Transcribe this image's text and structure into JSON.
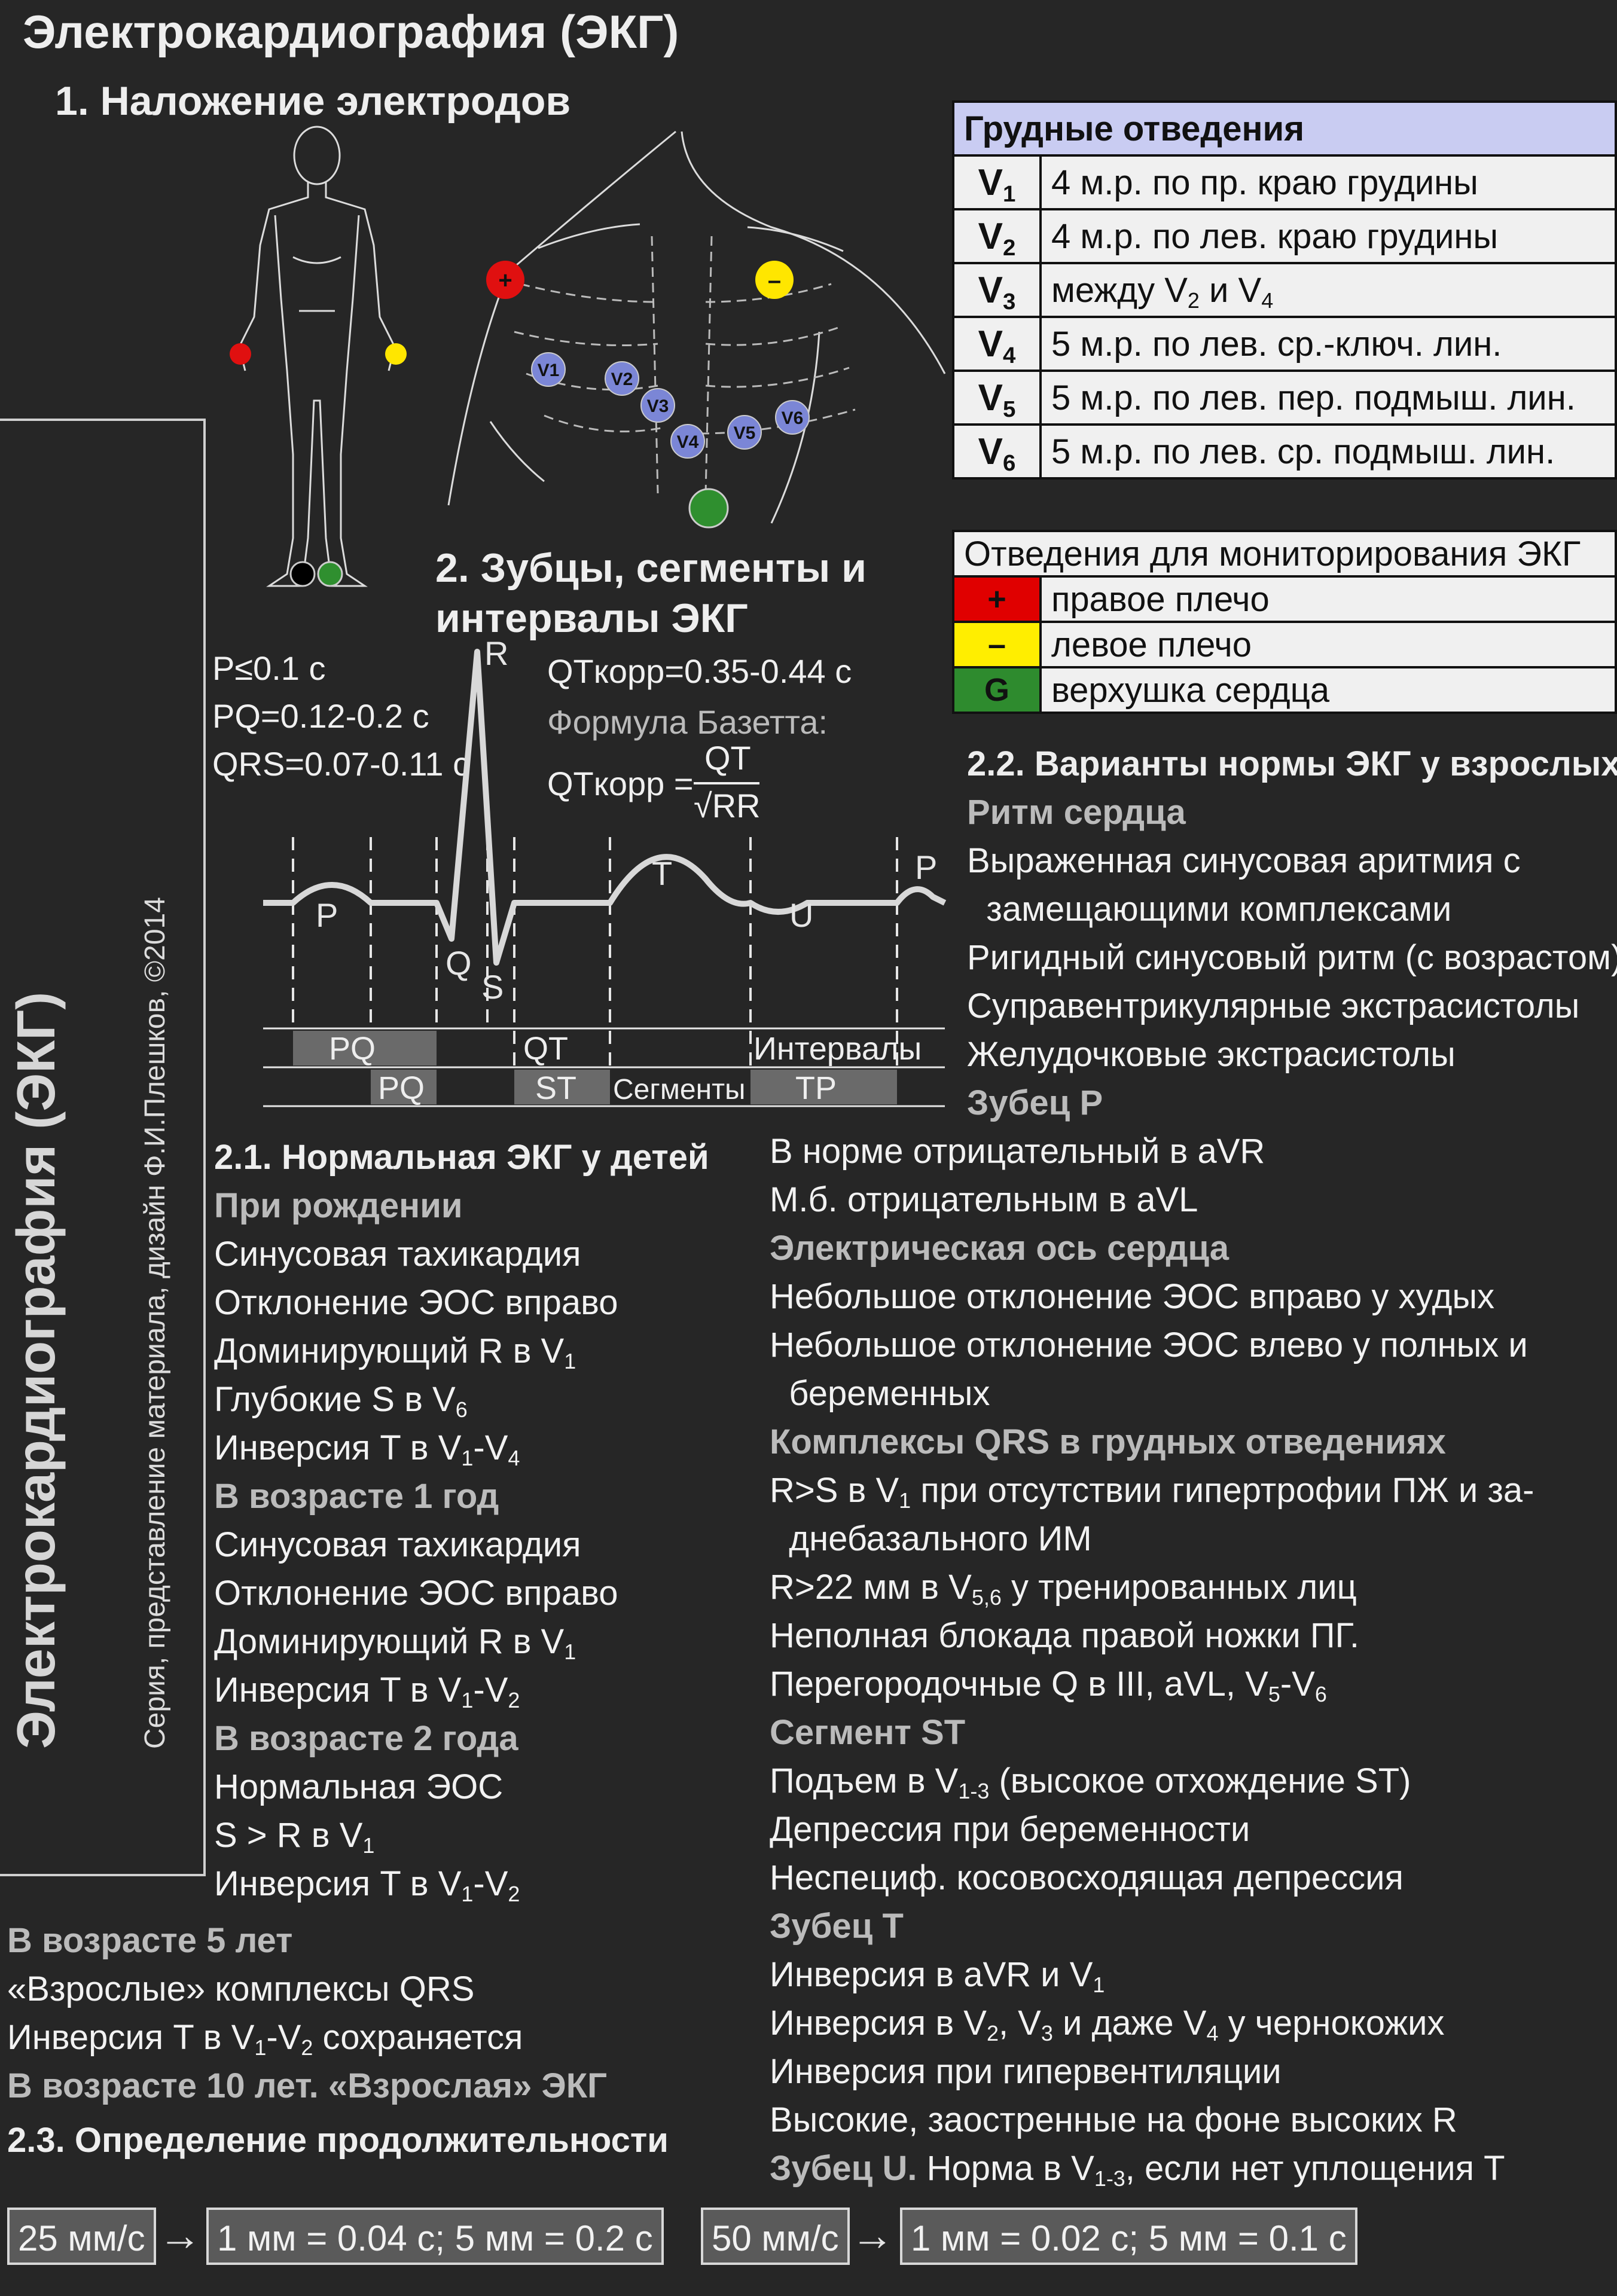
{
  "title": "Электрокардиография (ЭКГ)",
  "section1": {
    "title": "1. Наложение электродов"
  },
  "chest_leads": {
    "header": "Грудные отведения",
    "rows": [
      {
        "lead_base": "V",
        "lead_sub": "1",
        "pre": "4 м.р. по пр. краю грудины",
        "mid": "",
        "mid_sub": "",
        "post": "",
        "post_sub": ""
      },
      {
        "lead_base": "V",
        "lead_sub": "2",
        "pre": "4 м.р. по лев. краю грудины",
        "mid": "",
        "mid_sub": "",
        "post": "",
        "post_sub": ""
      },
      {
        "lead_base": "V",
        "lead_sub": "3",
        "pre": "между V",
        "mid": " и V",
        "mid_sub": "2",
        "post": "",
        "post_sub": "4"
      },
      {
        "lead_base": "V",
        "lead_sub": "4",
        "pre": "5 м.р. по лев. ср.-ключ. лин.",
        "mid": "",
        "mid_sub": "",
        "post": "",
        "post_sub": ""
      },
      {
        "lead_base": "V",
        "lead_sub": "5",
        "pre": "5 м.р. по лев. пер. подмыш. лин.",
        "mid": "",
        "mid_sub": "",
        "post": "",
        "post_sub": ""
      },
      {
        "lead_base": "V",
        "lead_sub": "6",
        "pre": "5 м.р. по лев. ср. подмыш. лин.",
        "mid": "",
        "mid_sub": "",
        "post": "",
        "post_sub": ""
      }
    ]
  },
  "monitoring": {
    "header": "Отведения для мониторирования ЭКГ",
    "rows": [
      {
        "symbol": "+",
        "text": "правое плечо",
        "color": "#e00000",
        "fg": "#111111"
      },
      {
        "symbol": "–",
        "text": "левое плечо",
        "color": "#ffee00",
        "fg": "#111111"
      },
      {
        "symbol": "G",
        "text": "верхушка сердца",
        "color": "#2e8b2e",
        "fg": "#111111"
      }
    ]
  },
  "electrodes": {
    "plus": "+",
    "minus": "–",
    "chest": [
      "V1",
      "V2",
      "V3",
      "V4",
      "V5",
      "V6"
    ],
    "colors": {
      "red": "#e01010",
      "yellow": "#ffe600",
      "green": "#2f8f2f",
      "black": "#000000",
      "lead": "#7b86d6"
    }
  },
  "section2": {
    "title_line1": "2. Зубцы, сегменты и",
    "title_line2": "интервалы ЭКГ",
    "params": {
      "p": "P≤0.1 с",
      "pq": "PQ=0.12-0.2 с",
      "qrs": "QRS=0.07-0.11 с"
    },
    "qtc": "QTкорр=0.35-0.44 с",
    "bazett_label": "Формула Базетта:",
    "formula_left": "QTкорр =",
    "formula_num": "QT",
    "formula_den": "√RR",
    "waves": {
      "p": "P",
      "q": "Q",
      "r": "R",
      "s": "S",
      "t": "T",
      "u": "U",
      "p2": "P"
    },
    "intervals": {
      "pq": "PQ",
      "qt": "QT",
      "label": "Интервалы"
    },
    "segments": {
      "pq": "PQ",
      "st": "ST",
      "label": "Сегменты",
      "tp": "TP"
    }
  },
  "side": {
    "vertical_title": "Электрокардиография (ЭКГ)",
    "credit": "Серия, представление материала, дизайн Ф.И.Плешков, ©2014"
  },
  "children": {
    "title": "2.1. Нормальная ЭКГ у детей",
    "birth": {
      "title": "При рождении",
      "items": [
        {
          "base": "Синусовая тахикардия",
          "sub": "",
          "tail": "",
          "tail_sub": ""
        },
        {
          "base": "Отклонение ЭОС вправо",
          "sub": "",
          "tail": "",
          "tail_sub": ""
        },
        {
          "base": "Доминирующий R в V",
          "sub": "1",
          "tail": "",
          "tail_sub": ""
        },
        {
          "base": "Глубокие S в V",
          "sub": "6",
          "tail": "",
          "tail_sub": ""
        },
        {
          "base": "Инверсия T в V",
          "sub": "1",
          "tail": "-V",
          "tail_sub": "4"
        }
      ]
    },
    "age1": {
      "title": "В возрасте 1 год",
      "items": [
        {
          "base": "Синусовая тахикардия",
          "sub": "",
          "tail": "",
          "tail_sub": ""
        },
        {
          "base": "Отклонение ЭОС вправо",
          "sub": "",
          "tail": "",
          "tail_sub": ""
        },
        {
          "base": "Доминирующий R в V",
          "sub": "1",
          "tail": "",
          "tail_sub": ""
        },
        {
          "base": "Инверсия T в V",
          "sub": "1",
          "tail": "-V",
          "tail_sub": "2"
        }
      ]
    },
    "age2": {
      "title": "В возрасте 2 года",
      "items": [
        {
          "base": "Нормальная ЭОС",
          "sub": "",
          "tail": "",
          "tail_sub": ""
        },
        {
          "base": "S > R в V",
          "sub": "1",
          "tail": "",
          "tail_sub": ""
        },
        {
          "base": "Инверсия T в V",
          "sub": "1",
          "tail": "-V",
          "tail_sub": "2"
        }
      ]
    },
    "age5": {
      "title": "В возрасте 5 лет",
      "items": [
        {
          "base": "«Взрослые» комплексы QRS",
          "sub": "",
          "tail": "",
          "tail_sub": ""
        },
        {
          "base": "Инверсия T в V",
          "sub": "1",
          "tail": "-V",
          "tail_sub": "2",
          "after": " сохраняется"
        }
      ]
    },
    "age10": {
      "title": "В возрасте 10 лет.",
      "text": " «Взрослая» ЭКГ"
    }
  },
  "adults": {
    "title": "2.2. Варианты нормы ЭКГ у взрослых",
    "rhythm": {
      "title": "Ритм сердца",
      "items": [
        "Выраженная синусовая аритмия с",
        "  замещающими комплексами",
        "Ригидный синусовый ритм (с возрастом)",
        "Суправентрикулярные экстрасистолы",
        "Желудочковые экстрасистолы"
      ]
    },
    "pwave": {
      "title": "Зубец P",
      "items": [
        "В норме отрицательный в aVR",
        "М.б. отрицательным в aVL"
      ]
    },
    "axis": {
      "title": "Электрическая ось сердца",
      "items": [
        "Небольшое отклонение ЭОС вправо у худых",
        "Небольшое отклонение ЭОС влево у полных и",
        "  беременных"
      ]
    },
    "qrs": {
      "title": "Комплексы QRS в грудных отведениях",
      "items": [
        {
          "base": "R>S в V",
          "sub": "1",
          "tail": " при отсутствии гипертрофии ПЖ и за-",
          "tail_sub": ""
        },
        {
          "base": "  днебазального ИМ",
          "sub": "",
          "tail": "",
          "tail_sub": ""
        },
        {
          "base": "R>22 мм в V",
          "sub": "5,6",
          "tail": " у тренированных лиц",
          "tail_sub": ""
        },
        {
          "base": "Неполная блокада правой ножки ПГ.",
          "sub": "",
          "tail": "",
          "tail_sub": ""
        },
        {
          "base": "Перегородочные Q в III, aVL, V",
          "sub": "5",
          "tail": "-V",
          "tail_sub": "6"
        }
      ]
    },
    "st": {
      "title": "Сегмент ST",
      "items": [
        {
          "base": "Подъем в V",
          "sub": "1-3",
          "tail": " (высокое отхождение ST)",
          "tail_sub": ""
        },
        {
          "base": "Депрессия при беременности",
          "sub": "",
          "tail": "",
          "tail_sub": ""
        },
        {
          "base": "Неспециф. косовосходящая депрессия",
          "sub": "",
          "tail": "",
          "tail_sub": ""
        }
      ]
    },
    "twave": {
      "title": "Зубец T",
      "items": [
        {
          "base": "Инверсия в aVR и V",
          "sub": "1",
          "tail": "",
          "tail_sub": ""
        },
        {
          "base": "Инверсия в V",
          "sub": "2",
          "tail": ", V",
          "tail_sub": "3",
          "after": " и даже V",
          "after_sub": "4",
          "after2": " у чернокожих"
        },
        {
          "base": "Инверсия при гипервентиляции",
          "sub": "",
          "tail": "",
          "tail_sub": ""
        },
        {
          "base": "Высокие, заостренные на фоне высоких R",
          "sub": "",
          "tail": "",
          "tail_sub": ""
        }
      ]
    },
    "uwave": {
      "title": "Зубец U.",
      "text": " Норма в V",
      "sub": "1-3",
      "tail": ", если нет уплощения T"
    }
  },
  "duration": {
    "title": "2.3. Определение продолжительности",
    "speed1": "25 мм/с",
    "result1": "1 мм = 0.04 с; 5 мм = 0.2 с",
    "speed2": "50 мм/с",
    "result2": "1 мм = 0.02 с; 5 мм = 0.1 с",
    "arrow": "→"
  }
}
